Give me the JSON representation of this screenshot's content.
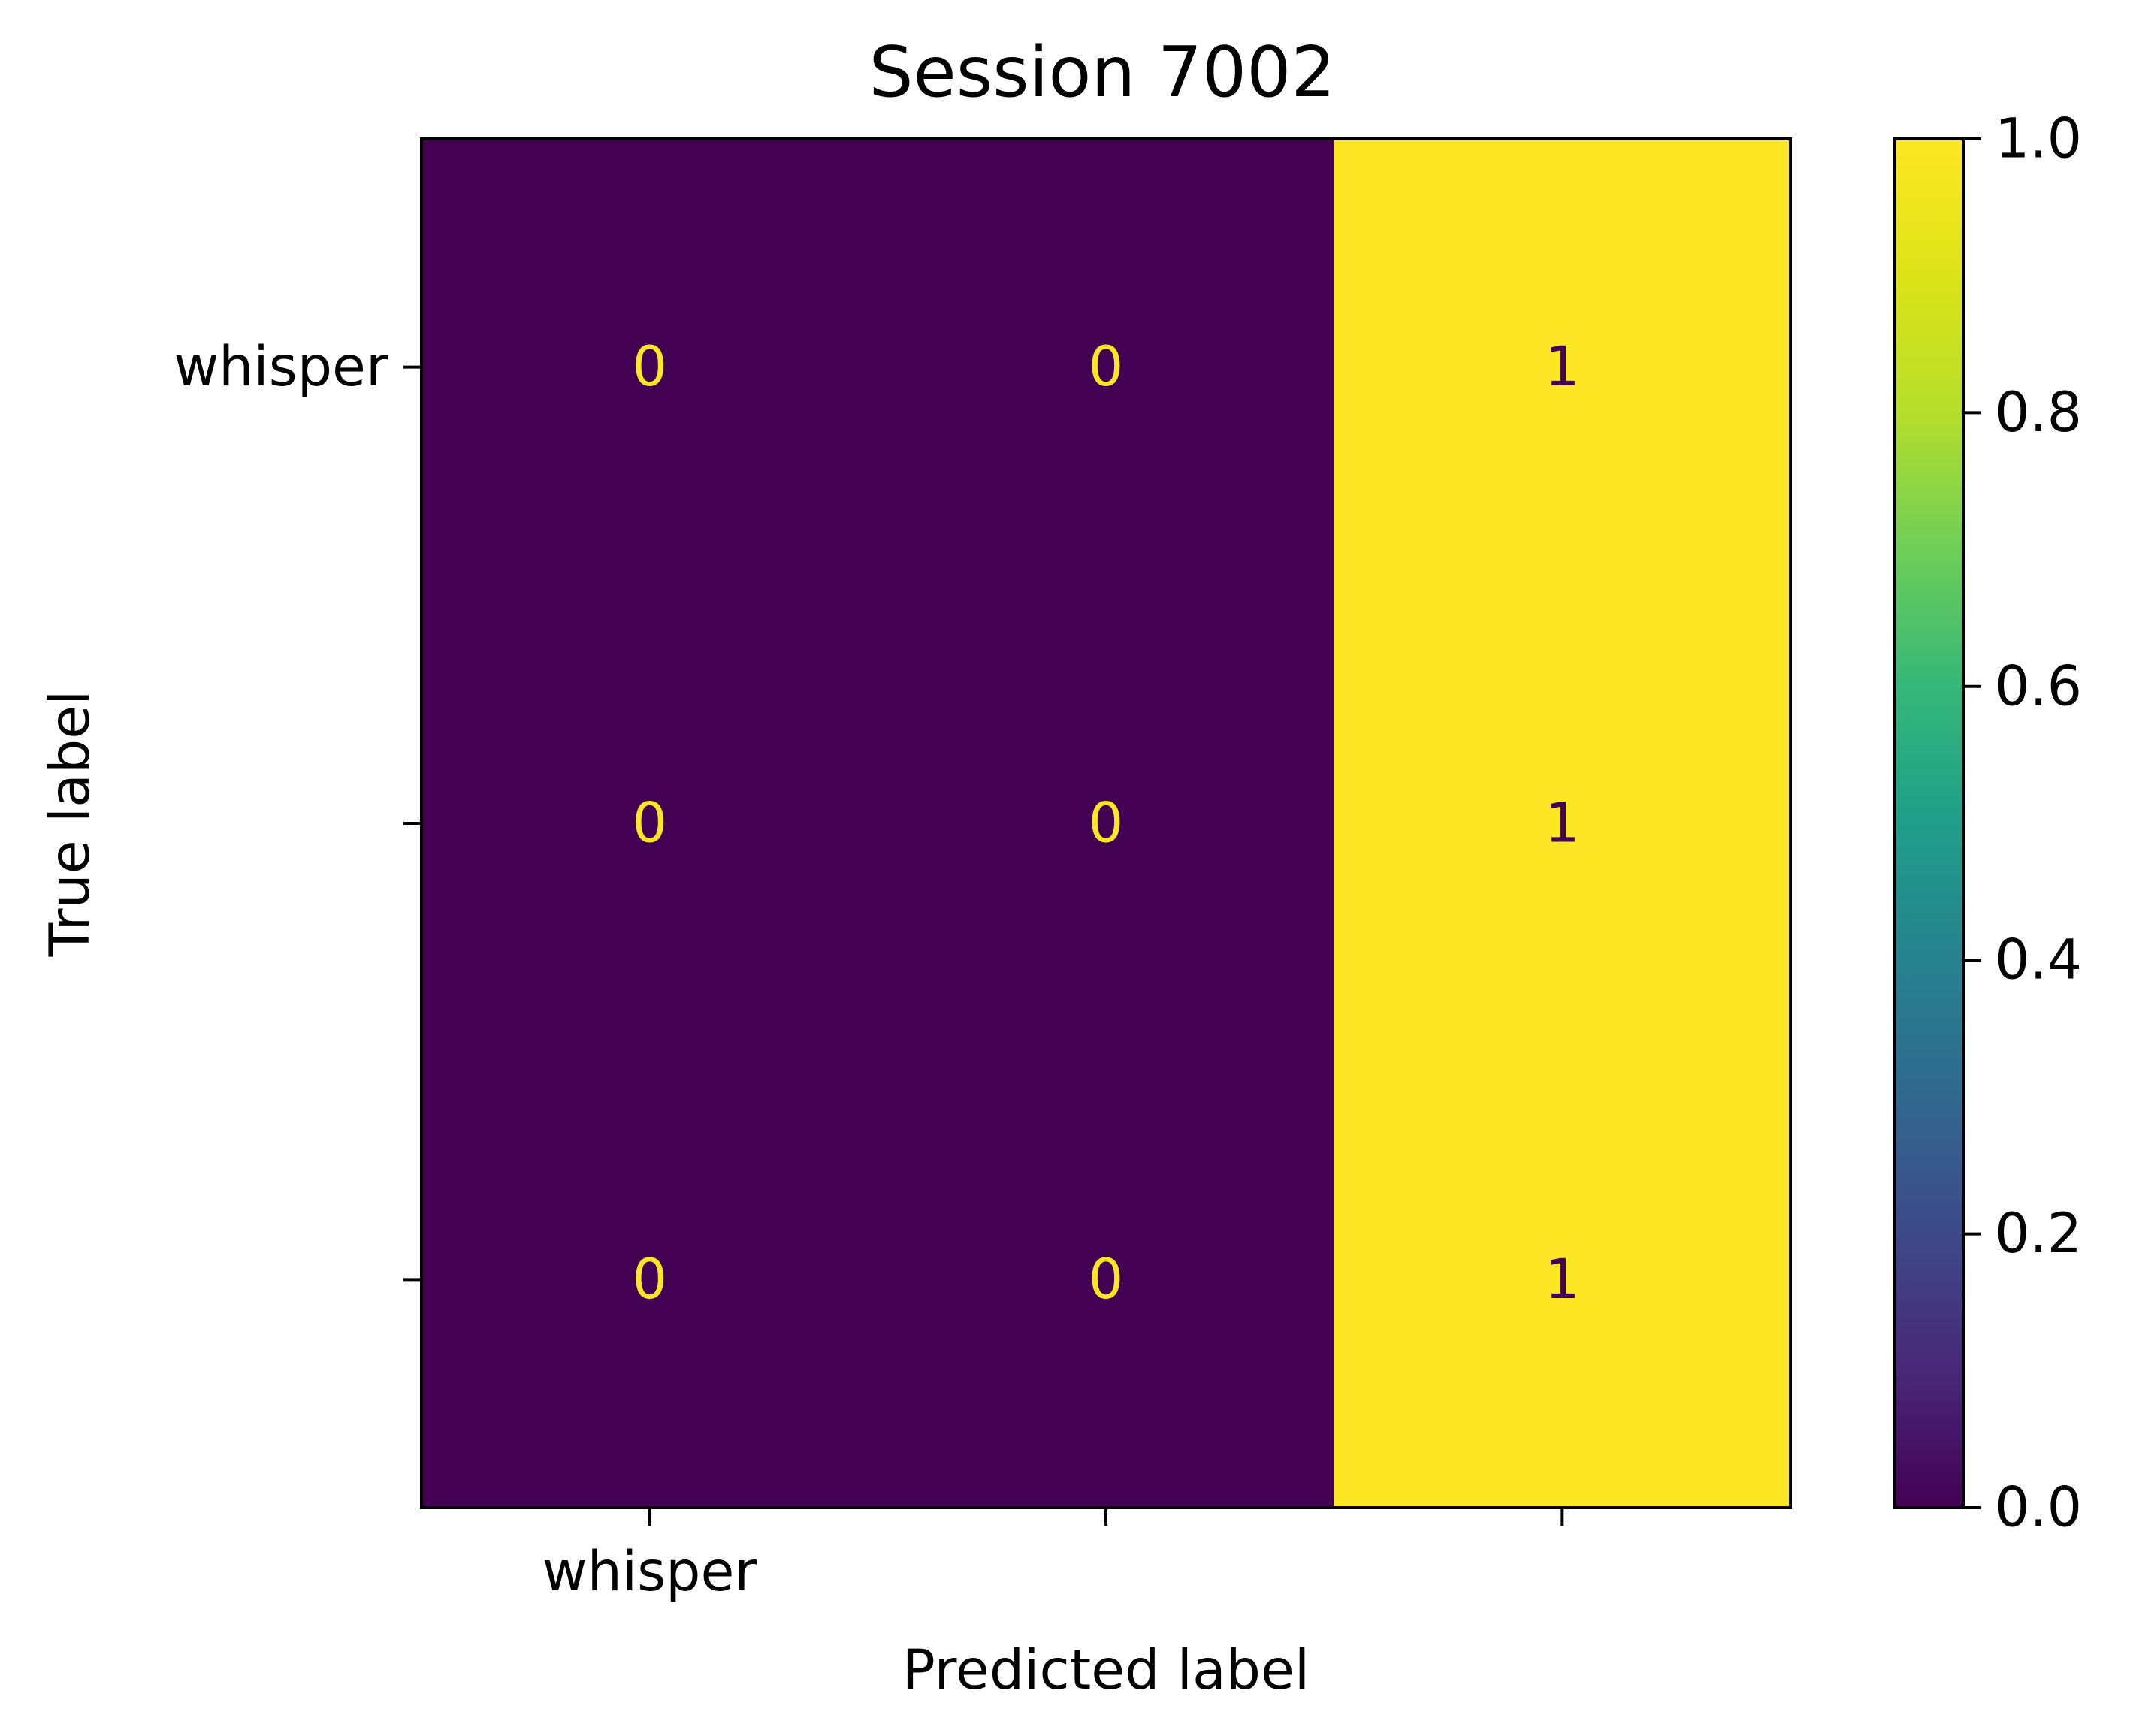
{
  "chart_data": {
    "type": "heatmap",
    "title": "Session 7002",
    "xlabel": "Predicted label",
    "ylabel": "True label",
    "x_tick_labels": [
      "whisper",
      "",
      ""
    ],
    "y_tick_labels": [
      "whisper",
      "",
      ""
    ],
    "matrix": [
      [
        0,
        0,
        1
      ],
      [
        0,
        0,
        1
      ],
      [
        0,
        0,
        1
      ]
    ],
    "colormap": "viridis",
    "colorbar": {
      "range": [
        0.0,
        1.0
      ],
      "tick_values": [
        0.0,
        0.2,
        0.4,
        0.6,
        0.8,
        1.0
      ],
      "tick_labels": [
        "0.0",
        "0.2",
        "0.4",
        "0.6",
        "0.8",
        "1.0"
      ]
    },
    "colors": {
      "low": "#440154",
      "high": "#fde725"
    }
  }
}
